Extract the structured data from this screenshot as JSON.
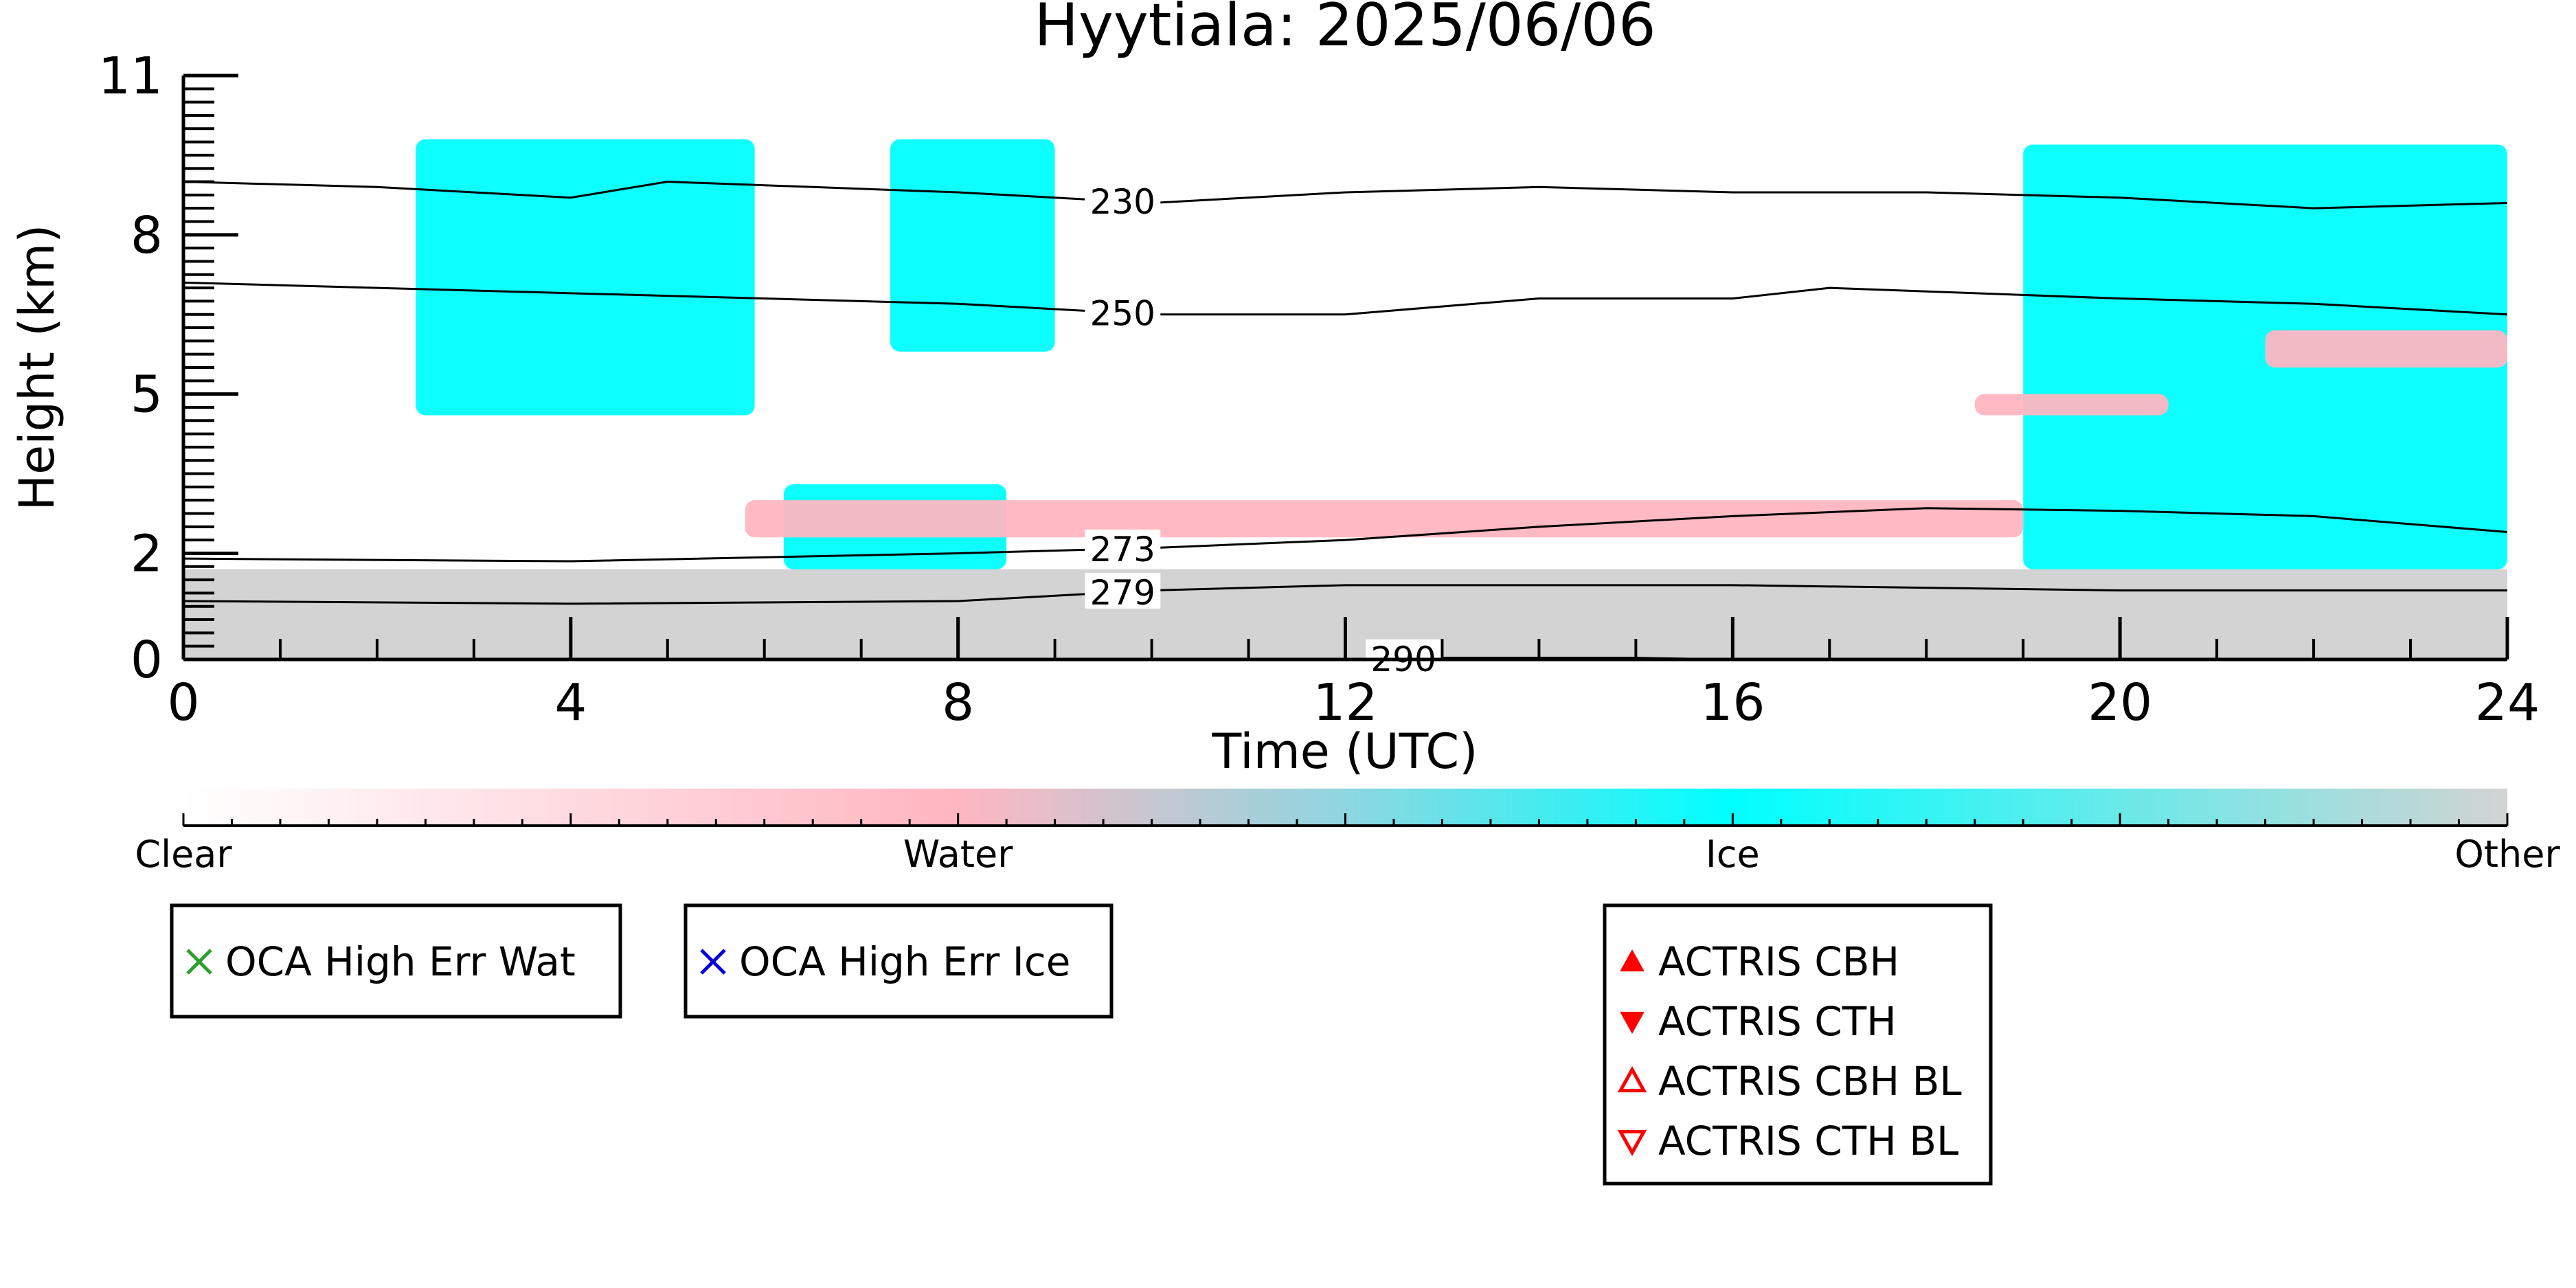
{
  "chart_data": {
    "type": "heatmap",
    "title": "Hyytiala: 2025/06/06",
    "xlabel": "Time (UTC)",
    "ylabel": "Height (km)",
    "xlim": [
      0,
      24
    ],
    "ylim": [
      0,
      11
    ],
    "x_ticks": [
      0,
      4,
      8,
      12,
      16,
      20,
      24
    ],
    "y_ticks": [
      0,
      2,
      5,
      8,
      11
    ],
    "colorbar": {
      "labels": [
        "Clear",
        "Water",
        "Ice",
        "Other"
      ],
      "colors": [
        "#ffffff",
        "#ffb6c1",
        "#00ffff",
        "#d3d3d3"
      ]
    },
    "colors": {
      "water": "#ffb6c1",
      "ice": "#00ffff",
      "other": "#d3d3d3"
    },
    "regions": [
      {
        "class": "other",
        "t": [
          0,
          24
        ],
        "h": [
          0,
          1.7
        ],
        "description": "low-level other/aerosol layer"
      },
      {
        "class": "ice",
        "t": [
          2.4,
          5.9
        ],
        "h": [
          4.6,
          9.8
        ]
      },
      {
        "class": "ice",
        "t": [
          7.3,
          9.0
        ],
        "h": [
          5.8,
          9.8
        ]
      },
      {
        "class": "ice",
        "t": [
          19.0,
          24.0
        ],
        "h": [
          1.7,
          9.7
        ]
      },
      {
        "class": "ice",
        "t": [
          6.2,
          8.5
        ],
        "h": [
          1.7,
          3.3
        ]
      },
      {
        "class": "water",
        "t": [
          5.8,
          19.0
        ],
        "h": [
          2.3,
          3.0
        ]
      },
      {
        "class": "water",
        "t": [
          18.5,
          20.5
        ],
        "h": [
          4.6,
          5.0
        ]
      },
      {
        "class": "water",
        "t": [
          21.5,
          24.0
        ],
        "h": [
          5.5,
          6.2
        ]
      }
    ],
    "isotherms": [
      {
        "label": "230",
        "label_x": 9.7,
        "t": [
          0,
          2,
          4,
          5,
          8,
          10,
          12,
          14,
          16,
          18,
          20,
          22,
          24
        ],
        "h": [
          9.0,
          8.9,
          8.7,
          9.0,
          8.8,
          8.6,
          8.8,
          8.9,
          8.8,
          8.8,
          8.7,
          8.5,
          8.6
        ]
      },
      {
        "label": "250",
        "label_x": 9.7,
        "t": [
          0,
          2,
          4,
          6,
          8,
          10,
          12,
          14,
          16,
          17,
          20,
          22,
          24
        ],
        "h": [
          7.1,
          7.0,
          6.9,
          6.8,
          6.7,
          6.5,
          6.5,
          6.8,
          6.8,
          7.0,
          6.8,
          6.7,
          6.5
        ]
      },
      {
        "label": "273",
        "label_x": 9.7,
        "t": [
          0,
          4,
          8,
          10,
          12,
          14,
          16,
          18,
          20,
          22,
          24
        ],
        "h": [
          1.9,
          1.85,
          2.0,
          2.1,
          2.25,
          2.5,
          2.7,
          2.85,
          2.8,
          2.7,
          2.4
        ]
      },
      {
        "label": "279",
        "label_x": 9.7,
        "t": [
          0,
          4,
          8,
          10,
          12,
          14,
          16,
          18,
          20,
          22,
          24
        ],
        "h": [
          1.1,
          1.05,
          1.1,
          1.3,
          1.4,
          1.4,
          1.4,
          1.35,
          1.3,
          1.3,
          1.3
        ]
      },
      {
        "label": "290",
        "label_x": 12.6,
        "t": [
          12.2,
          13.0,
          15.0,
          16.0
        ],
        "h": [
          0.0,
          0.03,
          0.03,
          0.0
        ]
      }
    ],
    "legends": [
      {
        "entries": [
          {
            "marker": "x",
            "color": "#2ca02c",
            "label": "OCA High Err Wat"
          }
        ]
      },
      {
        "entries": [
          {
            "marker": "x",
            "color": "#0000dd",
            "label": "OCA High Err Ice"
          }
        ]
      },
      {
        "entries": [
          {
            "marker": "triangle-up-filled",
            "color": "#ff0000",
            "label": "ACTRIS CBH"
          },
          {
            "marker": "triangle-down-filled",
            "color": "#ff0000",
            "label": "ACTRIS CTH"
          },
          {
            "marker": "triangle-up-open",
            "color": "#ff0000",
            "label": "ACTRIS CBH BL"
          },
          {
            "marker": "triangle-down-open",
            "color": "#ff0000",
            "label": "ACTRIS CTH BL"
          }
        ]
      }
    ]
  }
}
